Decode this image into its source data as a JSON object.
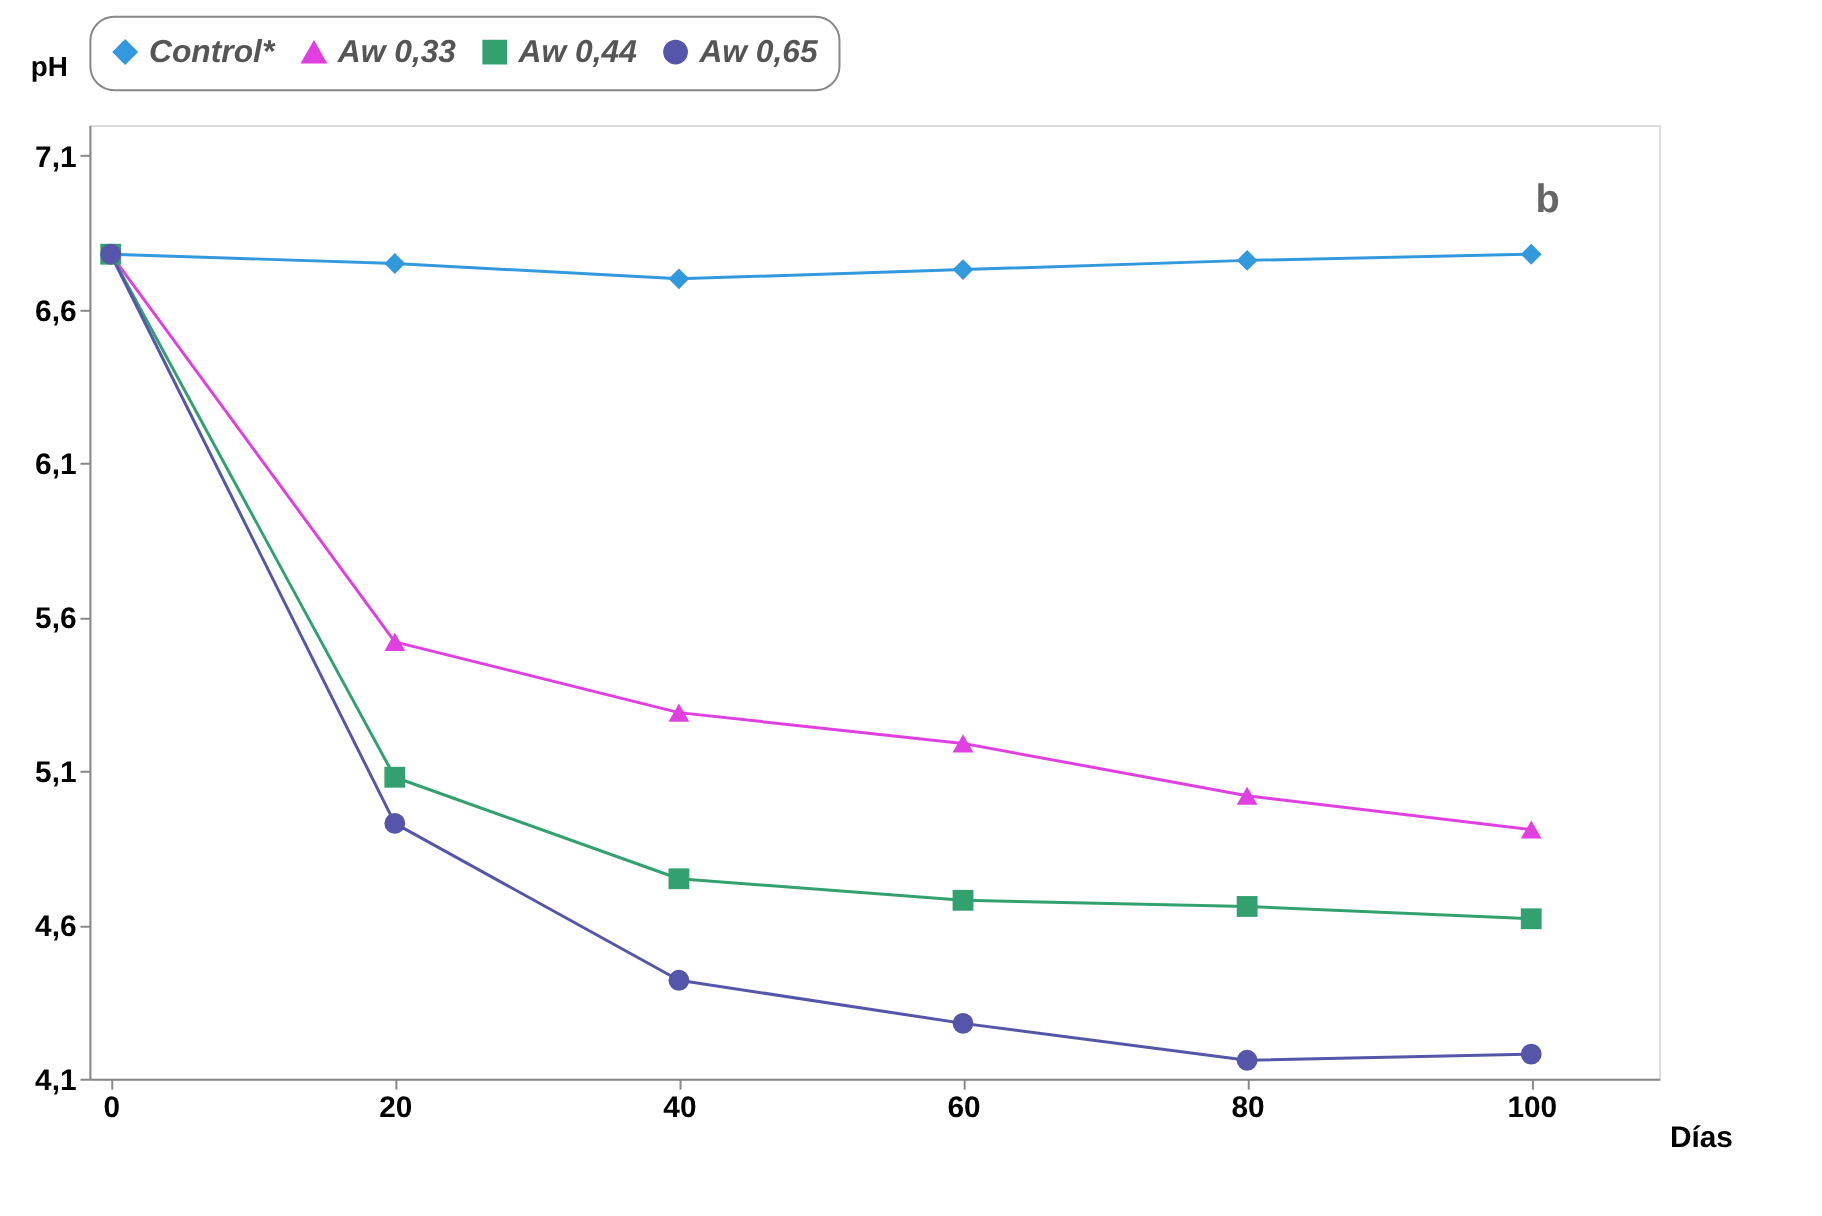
{
  "chart_data": {
    "type": "line",
    "xlabel": "Días",
    "ylabel": "pH",
    "x": [
      0,
      20,
      40,
      60,
      80,
      100
    ],
    "series": [
      {
        "name": "Control*",
        "color": "#3399dd",
        "marker": "diamond",
        "values": [
          6.78,
          6.75,
          6.7,
          6.73,
          6.76,
          6.78
        ]
      },
      {
        "name": "Aw 0,33",
        "color": "#e040e0",
        "marker": "triangle",
        "values": [
          6.78,
          5.52,
          5.29,
          5.19,
          5.02,
          4.91
        ]
      },
      {
        "name": "Aw 0,44",
        "color": "#33a070",
        "marker": "square",
        "values": [
          6.78,
          5.08,
          4.75,
          4.68,
          4.66,
          4.62
        ]
      },
      {
        "name": "Aw 0,65",
        "color": "#5555aa",
        "marker": "circle",
        "values": [
          6.78,
          4.93,
          4.42,
          4.28,
          4.16,
          4.18
        ]
      }
    ],
    "xlim": [
      -1.5,
      109
    ],
    "xticks": [
      0,
      20,
      40,
      60,
      80,
      100
    ],
    "ylim": [
      4.1,
      7.2
    ],
    "yticks": [
      {
        "value": 4.1,
        "label": "4,1"
      },
      {
        "value": 4.6,
        "label": "4,6"
      },
      {
        "value": 5.1,
        "label": "5,1"
      },
      {
        "value": 5.6,
        "label": "5,6"
      },
      {
        "value": 6.1,
        "label": "6,1"
      },
      {
        "value": 6.6,
        "label": "6,6"
      },
      {
        "value": 7.1,
        "label": "7,1"
      }
    ],
    "grid": false,
    "legend": "top",
    "line_style": "solid",
    "annotations": [
      "b"
    ]
  }
}
